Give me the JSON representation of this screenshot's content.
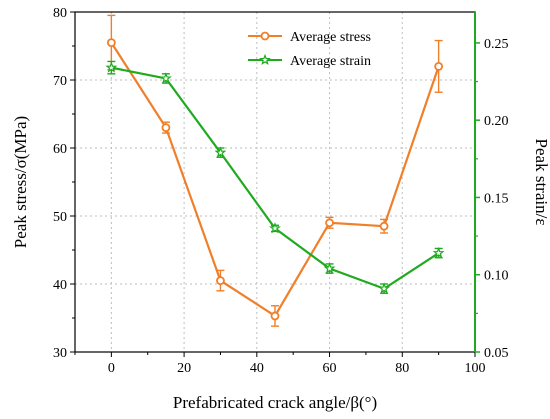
{
  "chart_data": {
    "type": "line",
    "x": [
      0,
      15,
      30,
      45,
      60,
      75,
      90
    ],
    "xlabel": "Prefabricated crack angle/β(°)",
    "ylabel": "Peak stress/σ(MPa)",
    "y2label": "Peak strain/ε",
    "xlim": [
      -10,
      100
    ],
    "ylim": [
      30,
      80
    ],
    "y2lim": [
      0.05,
      0.27
    ],
    "xticks": [
      0,
      20,
      40,
      60,
      80,
      100
    ],
    "yticks": [
      30,
      40,
      50,
      60,
      70,
      80
    ],
    "y2ticks": [
      0.05,
      0.1,
      0.15,
      0.2,
      0.25
    ],
    "grid": true,
    "legend_position": "top-center",
    "series": [
      {
        "name": "Average stress",
        "axis": "left",
        "color": "#f07f2a",
        "marker": "circle",
        "values": [
          75.5,
          63.0,
          40.5,
          35.3,
          49.0,
          48.5,
          72.0
        ],
        "errors": [
          4.0,
          0.8,
          1.5,
          1.5,
          0.8,
          1.0,
          3.8
        ]
      },
      {
        "name": "Average strain",
        "axis": "right",
        "color": "#1faa1f",
        "marker": "star",
        "values": [
          0.234,
          0.227,
          0.179,
          0.13,
          0.104,
          0.091,
          0.114
        ],
        "errors": [
          0.004,
          0.003,
          0.003,
          0.002,
          0.003,
          0.003,
          0.003
        ]
      }
    ]
  }
}
